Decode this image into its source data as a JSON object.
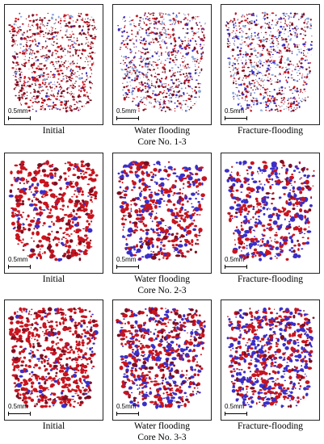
{
  "figure": {
    "rows": [
      {
        "core_label": "Core No. 1-3",
        "panels": [
          {
            "caption": "Initial",
            "scale_label": "0.5mm"
          },
          {
            "caption": "Water flooding",
            "scale_label": "0.5mm"
          },
          {
            "caption": "Fracture-flooding",
            "scale_label": "0.5mm"
          }
        ]
      },
      {
        "core_label": "Core No. 2-3",
        "panels": [
          {
            "caption": "Initial",
            "scale_label": "0.5mm"
          },
          {
            "caption": "Water flooding",
            "scale_label": "0.5mm"
          },
          {
            "caption": "Fracture-flooding",
            "scale_label": "0.5mm"
          }
        ]
      },
      {
        "core_label": "Core No. 3-3",
        "panels": [
          {
            "caption": "Initial",
            "scale_label": "0.5mm"
          },
          {
            "caption": "Water flooding",
            "scale_label": "0.5mm"
          },
          {
            "caption": "Fracture-flooding",
            "scale_label": "0.5mm"
          }
        ]
      }
    ],
    "colors": {
      "oil_phase": "#c8141e",
      "oil_phase_dark": "#7a0f22",
      "water_phase": "#3a2fc8",
      "water_phase_light": "#8aa6d8",
      "border": "#222222"
    }
  }
}
